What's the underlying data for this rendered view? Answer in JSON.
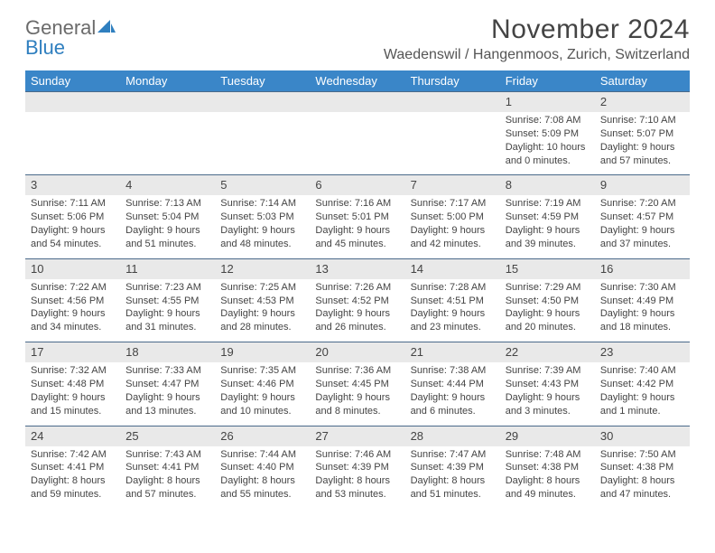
{
  "logo": {
    "text_general": "General",
    "text_blue": "Blue"
  },
  "header": {
    "month_title": "November 2024",
    "location": "Waedenswil / Hangenmoos, Zurich, Switzerland"
  },
  "colors": {
    "header_bg": "#3a86c8",
    "daynum_bg": "#e9e9e9",
    "border": "#4a6a8a",
    "text": "#444444"
  },
  "day_names": [
    "Sunday",
    "Monday",
    "Tuesday",
    "Wednesday",
    "Thursday",
    "Friday",
    "Saturday"
  ],
  "weeks": [
    {
      "days": [
        {
          "num": "",
          "sunrise": "",
          "sunset": "",
          "daylight": ""
        },
        {
          "num": "",
          "sunrise": "",
          "sunset": "",
          "daylight": ""
        },
        {
          "num": "",
          "sunrise": "",
          "sunset": "",
          "daylight": ""
        },
        {
          "num": "",
          "sunrise": "",
          "sunset": "",
          "daylight": ""
        },
        {
          "num": "",
          "sunrise": "",
          "sunset": "",
          "daylight": ""
        },
        {
          "num": "1",
          "sunrise": "Sunrise: 7:08 AM",
          "sunset": "Sunset: 5:09 PM",
          "daylight": "Daylight: 10 hours and 0 minutes."
        },
        {
          "num": "2",
          "sunrise": "Sunrise: 7:10 AM",
          "sunset": "Sunset: 5:07 PM",
          "daylight": "Daylight: 9 hours and 57 minutes."
        }
      ]
    },
    {
      "days": [
        {
          "num": "3",
          "sunrise": "Sunrise: 7:11 AM",
          "sunset": "Sunset: 5:06 PM",
          "daylight": "Daylight: 9 hours and 54 minutes."
        },
        {
          "num": "4",
          "sunrise": "Sunrise: 7:13 AM",
          "sunset": "Sunset: 5:04 PM",
          "daylight": "Daylight: 9 hours and 51 minutes."
        },
        {
          "num": "5",
          "sunrise": "Sunrise: 7:14 AM",
          "sunset": "Sunset: 5:03 PM",
          "daylight": "Daylight: 9 hours and 48 minutes."
        },
        {
          "num": "6",
          "sunrise": "Sunrise: 7:16 AM",
          "sunset": "Sunset: 5:01 PM",
          "daylight": "Daylight: 9 hours and 45 minutes."
        },
        {
          "num": "7",
          "sunrise": "Sunrise: 7:17 AM",
          "sunset": "Sunset: 5:00 PM",
          "daylight": "Daylight: 9 hours and 42 minutes."
        },
        {
          "num": "8",
          "sunrise": "Sunrise: 7:19 AM",
          "sunset": "Sunset: 4:59 PM",
          "daylight": "Daylight: 9 hours and 39 minutes."
        },
        {
          "num": "9",
          "sunrise": "Sunrise: 7:20 AM",
          "sunset": "Sunset: 4:57 PM",
          "daylight": "Daylight: 9 hours and 37 minutes."
        }
      ]
    },
    {
      "days": [
        {
          "num": "10",
          "sunrise": "Sunrise: 7:22 AM",
          "sunset": "Sunset: 4:56 PM",
          "daylight": "Daylight: 9 hours and 34 minutes."
        },
        {
          "num": "11",
          "sunrise": "Sunrise: 7:23 AM",
          "sunset": "Sunset: 4:55 PM",
          "daylight": "Daylight: 9 hours and 31 minutes."
        },
        {
          "num": "12",
          "sunrise": "Sunrise: 7:25 AM",
          "sunset": "Sunset: 4:53 PM",
          "daylight": "Daylight: 9 hours and 28 minutes."
        },
        {
          "num": "13",
          "sunrise": "Sunrise: 7:26 AM",
          "sunset": "Sunset: 4:52 PM",
          "daylight": "Daylight: 9 hours and 26 minutes."
        },
        {
          "num": "14",
          "sunrise": "Sunrise: 7:28 AM",
          "sunset": "Sunset: 4:51 PM",
          "daylight": "Daylight: 9 hours and 23 minutes."
        },
        {
          "num": "15",
          "sunrise": "Sunrise: 7:29 AM",
          "sunset": "Sunset: 4:50 PM",
          "daylight": "Daylight: 9 hours and 20 minutes."
        },
        {
          "num": "16",
          "sunrise": "Sunrise: 7:30 AM",
          "sunset": "Sunset: 4:49 PM",
          "daylight": "Daylight: 9 hours and 18 minutes."
        }
      ]
    },
    {
      "days": [
        {
          "num": "17",
          "sunrise": "Sunrise: 7:32 AM",
          "sunset": "Sunset: 4:48 PM",
          "daylight": "Daylight: 9 hours and 15 minutes."
        },
        {
          "num": "18",
          "sunrise": "Sunrise: 7:33 AM",
          "sunset": "Sunset: 4:47 PM",
          "daylight": "Daylight: 9 hours and 13 minutes."
        },
        {
          "num": "19",
          "sunrise": "Sunrise: 7:35 AM",
          "sunset": "Sunset: 4:46 PM",
          "daylight": "Daylight: 9 hours and 10 minutes."
        },
        {
          "num": "20",
          "sunrise": "Sunrise: 7:36 AM",
          "sunset": "Sunset: 4:45 PM",
          "daylight": "Daylight: 9 hours and 8 minutes."
        },
        {
          "num": "21",
          "sunrise": "Sunrise: 7:38 AM",
          "sunset": "Sunset: 4:44 PM",
          "daylight": "Daylight: 9 hours and 6 minutes."
        },
        {
          "num": "22",
          "sunrise": "Sunrise: 7:39 AM",
          "sunset": "Sunset: 4:43 PM",
          "daylight": "Daylight: 9 hours and 3 minutes."
        },
        {
          "num": "23",
          "sunrise": "Sunrise: 7:40 AM",
          "sunset": "Sunset: 4:42 PM",
          "daylight": "Daylight: 9 hours and 1 minute."
        }
      ]
    },
    {
      "days": [
        {
          "num": "24",
          "sunrise": "Sunrise: 7:42 AM",
          "sunset": "Sunset: 4:41 PM",
          "daylight": "Daylight: 8 hours and 59 minutes."
        },
        {
          "num": "25",
          "sunrise": "Sunrise: 7:43 AM",
          "sunset": "Sunset: 4:41 PM",
          "daylight": "Daylight: 8 hours and 57 minutes."
        },
        {
          "num": "26",
          "sunrise": "Sunrise: 7:44 AM",
          "sunset": "Sunset: 4:40 PM",
          "daylight": "Daylight: 8 hours and 55 minutes."
        },
        {
          "num": "27",
          "sunrise": "Sunrise: 7:46 AM",
          "sunset": "Sunset: 4:39 PM",
          "daylight": "Daylight: 8 hours and 53 minutes."
        },
        {
          "num": "28",
          "sunrise": "Sunrise: 7:47 AM",
          "sunset": "Sunset: 4:39 PM",
          "daylight": "Daylight: 8 hours and 51 minutes."
        },
        {
          "num": "29",
          "sunrise": "Sunrise: 7:48 AM",
          "sunset": "Sunset: 4:38 PM",
          "daylight": "Daylight: 8 hours and 49 minutes."
        },
        {
          "num": "30",
          "sunrise": "Sunrise: 7:50 AM",
          "sunset": "Sunset: 4:38 PM",
          "daylight": "Daylight: 8 hours and 47 minutes."
        }
      ]
    }
  ]
}
